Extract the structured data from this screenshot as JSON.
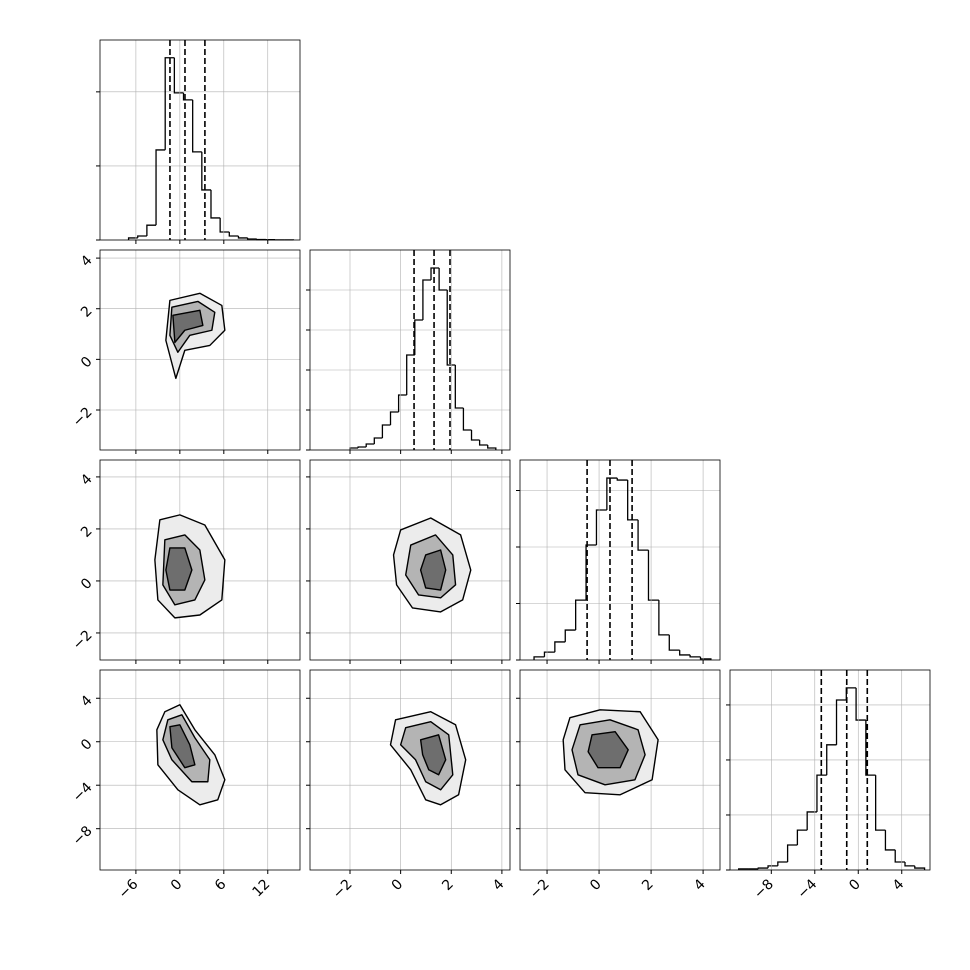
{
  "chart_data": {
    "type": "corner",
    "line_color": "#000000",
    "grid_color": "#b0b0b0",
    "contour_fills": [
      "#ececec",
      "#b4b4b4",
      "#6e6e6e"
    ],
    "grid": true,
    "parameters": [
      {
        "xlim": [
          -10.9,
          16.4
        ],
        "xticks": [
          {
            "value": -6,
            "label": "−6"
          },
          0,
          6,
          12
        ],
        "quantiles": [
          -1.35,
          0.7,
          3.42
        ],
        "hist": {
          "ylim": [
            0,
            1350
          ],
          "yticks": [
            0,
            500,
            1000
          ],
          "bins": [
            -7,
            -5.75,
            -4.5,
            -3.25,
            -2,
            -0.75,
            0.5,
            1.75,
            3,
            4.25,
            5.5,
            6.75,
            8,
            9.25,
            10.5,
            11.75,
            13,
            14.25,
            15.5
          ],
          "counts": [
            14,
            27,
            100,
            608,
            1230,
            993,
            946,
            595,
            338,
            149,
            54,
            27,
            14,
            7,
            3,
            2,
            1,
            1
          ]
        }
      },
      {
        "xlim": [
          -3.58,
          4.32
        ],
        "xticks": [
          {
            "value": -2,
            "label": "−2"
          },
          0,
          2,
          4
        ],
        "quantiles": [
          0.53,
          1.32,
          1.95
        ],
        "hist": {
          "ylim": [
            0,
            1000
          ],
          "yticks": [
            0,
            200,
            400,
            600,
            800
          ],
          "bins": [
            -2,
            -1.68,
            -1.36,
            -1.04,
            -0.72,
            -0.4,
            -0.08,
            0.24,
            0.56,
            0.88,
            1.2,
            1.52,
            1.84,
            2.16,
            2.48,
            2.8,
            3.12,
            3.44,
            3.76
          ],
          "counts": [
            10,
            15,
            30,
            60,
            125,
            190,
            275,
            475,
            650,
            850,
            910,
            800,
            425,
            210,
            100,
            50,
            25,
            10
          ]
        }
      },
      {
        "xlim": [
          -3.04,
          4.65
        ],
        "xticks": [
          {
            "value": -2,
            "label": "−2"
          },
          0,
          2,
          4
        ],
        "quantiles": [
          -0.46,
          0.42,
          1.27
        ],
        "hist": {
          "ylim": [
            0,
            708
          ],
          "yticks": [
            0,
            200,
            400,
            600
          ],
          "bins": [
            -2.5,
            -2.1,
            -1.7,
            -1.3,
            -0.9,
            -0.5,
            -0.1,
            0.3,
            0.7,
            1.1,
            1.5,
            1.9,
            2.3,
            2.7,
            3.1,
            3.5,
            3.9,
            4.3
          ],
          "counts": [
            11,
            28,
            64,
            106,
            212,
            407,
            531,
            644,
            637,
            496,
            389,
            212,
            89,
            35,
            18,
            11,
            4
          ]
        }
      },
      {
        "xlim": [
          -11.8,
          6.6
        ],
        "xticks": [
          {
            "value": -8,
            "label": "−8"
          },
          {
            "value": -4,
            "label": "−4"
          },
          0,
          4
        ],
        "quantiles": [
          -3.4,
          -1.06,
          0.83
        ],
        "hist": {
          "ylim": [
            0,
            727
          ],
          "yticks": [
            0,
            200,
            400,
            600
          ],
          "bins": [
            -11,
            -10.1,
            -9.2,
            -8.3,
            -7.4,
            -6.5,
            -5.6,
            -4.7,
            -3.8,
            -2.9,
            -2,
            -1.1,
            -0.2,
            0.7,
            1.6,
            2.5,
            3.4,
            4.3,
            5.2,
            6.1
          ],
          "counts": [
            4,
            4,
            7,
            15,
            29,
            91,
            145,
            211,
            345,
            455,
            618,
            662,
            545,
            345,
            145,
            73,
            29,
            15,
            7
          ]
        }
      }
    ],
    "panels": [
      {
        "x_param": 0,
        "y_param": 1,
        "contours": [
          {
            "x": [
              -1.36,
              2.73,
              5.73,
              6.14,
              4.09,
              0.68,
              -0.55,
              -1.91
            ],
            "y": [
              2.33,
              2.61,
              2.13,
              1.15,
              0.55,
              0.36,
              -0.75,
              0.75
            ]
          },
          {
            "x": [
              -1.09,
              2.46,
              4.77,
              4.37,
              1.36,
              -0.27,
              -1.36
            ],
            "y": [
              2.06,
              2.29,
              1.86,
              1.15,
              0.95,
              0.28,
              0.95
            ]
          },
          {
            "x": [
              -0.95,
              2.73,
              3.14,
              0.68,
              -0.68
            ],
            "y": [
              1.74,
              1.94,
              1.34,
              1.15,
              0.67
            ]
          }
        ]
      },
      {
        "x_param": 0,
        "y_param": 2,
        "contours": [
          {
            "x": [
              -2.73,
              0,
              3.41,
              6.14,
              5.73,
              2.73,
              -0.68,
              -3.0,
              -3.41
            ],
            "y": [
              2.35,
              2.54,
              2.15,
              0.81,
              -0.73,
              -1.31,
              -1.42,
              -0.73,
              0.81
            ]
          },
          {
            "x": [
              -2.05,
              0.68,
              2.73,
              3.41,
              2.05,
              -0.68,
              -2.32
            ],
            "y": [
              1.58,
              1.77,
              1.19,
              0.04,
              -0.73,
              -0.92,
              -0.15
            ]
          },
          {
            "x": [
              -1.36,
              0.68,
              1.64,
              0.68,
              -1.36,
              -1.91
            ],
            "y": [
              1.27,
              1.27,
              0.42,
              -0.35,
              -0.35,
              0.42
            ]
          }
        ]
      },
      {
        "x_param": 0,
        "y_param": 3,
        "contours": [
          {
            "x": [
              -2.05,
              0,
              2.05,
              4.77,
              6.14,
              5.18,
              2.73,
              -0.27,
              -3.0,
              -3.14
            ],
            "y": [
              2.76,
              3.4,
              1.1,
              -1.2,
              -3.5,
              -5.34,
              -5.8,
              -4.42,
              -2.12,
              1.1
            ]
          },
          {
            "x": [
              -1.64,
              0.27,
              2.05,
              4.09,
              3.82,
              1.64,
              -1.09,
              -2.32
            ],
            "y": [
              2.02,
              2.48,
              0.37,
              -1.66,
              -3.68,
              -3.68,
              -1.66,
              0.18
            ]
          },
          {
            "x": [
              -1.36,
              0,
              1.36,
              2.05,
              0.68,
              -1.09
            ],
            "y": [
              1.38,
              1.56,
              -0.28,
              -2.12,
              -2.39,
              -0.55
            ]
          }
        ]
      },
      {
        "x_param": 1,
        "y_param": 2,
        "contours": [
          {
            "x": [
              0,
              1.19,
              2.37,
              2.77,
              2.45,
              1.58,
              0.47,
              -0.16,
              -0.28
            ],
            "y": [
              1.96,
              2.42,
              1.77,
              0.42,
              -0.73,
              -1.19,
              -1.04,
              -0.15,
              1.0
            ]
          },
          {
            "x": [
              0.4,
              1.38,
              2.06,
              2.17,
              1.58,
              0.71,
              0.2
            ],
            "y": [
              1.38,
              1.77,
              1.0,
              -0.15,
              -0.65,
              -0.54,
              0.23
            ]
          },
          {
            "x": [
              0.99,
              1.58,
              1.78,
              1.58,
              0.99,
              0.79
            ],
            "y": [
              1.0,
              1.19,
              0.42,
              -0.35,
              -0.27,
              0.42
            ]
          }
        ]
      },
      {
        "x_param": 1,
        "y_param": 3,
        "contours": [
          {
            "x": [
              -0.2,
              1.19,
              2.17,
              2.57,
              2.29,
              1.58,
              0.99,
              0.4,
              -0.4
            ],
            "y": [
              2.02,
              2.76,
              1.56,
              -1.66,
              -4.88,
              -5.8,
              -5.34,
              -2.58,
              -0.28
            ]
          },
          {
            "x": [
              0.2,
              1.19,
              1.9,
              2.06,
              1.58,
              0.99,
              0.59,
              0
            ],
            "y": [
              1.29,
              1.84,
              0.64,
              -3.04,
              -4.42,
              -3.68,
              -1.66,
              -0.28
            ]
          },
          {
            "x": [
              0.79,
              1.5,
              1.78,
              1.5,
              1.11,
              0.87
            ],
            "y": [
              0.18,
              0.64,
              -1.66,
              -3.04,
              -2.58,
              -1.2
            ]
          }
        ]
      },
      {
        "x_param": 2,
        "y_param": 3,
        "contours": [
          {
            "x": [
              -1.12,
              0.04,
              1.58,
              2.27,
              2.04,
              0.81,
              -0.54,
              -1.31,
              -1.38
            ],
            "y": [
              2.21,
              2.94,
              2.76,
              0.18,
              -3.5,
              -4.88,
              -4.69,
              -2.58,
              0.18
            ]
          },
          {
            "x": [
              -0.73,
              0.42,
              1.5,
              1.77,
              1.38,
              0.23,
              -0.81,
              -1.04
            ],
            "y": [
              1.56,
              2.02,
              1.1,
              -1.2,
              -3.5,
              -3.96,
              -3.04,
              -0.74
            ]
          },
          {
            "x": [
              -0.27,
              0.62,
              1.12,
              0.81,
              -0.04,
              -0.42
            ],
            "y": [
              0.64,
              0.92,
              -0.74,
              -2.39,
              -2.39,
              -0.92
            ]
          }
        ]
      }
    ]
  }
}
